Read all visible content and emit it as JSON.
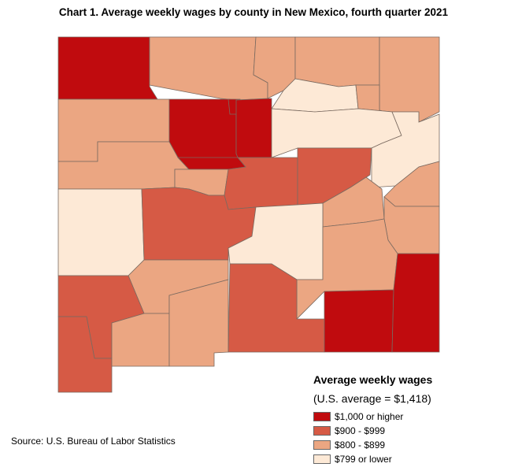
{
  "title": "Chart 1. Average weekly wages by county in New Mexico, fourth quarter 2021",
  "legend": {
    "title": "Average weekly wages",
    "subtitle": "(U.S. average = $1,418)",
    "items": [
      {
        "label": "$1,000 or higher",
        "color": "#c00b0e",
        "tier": 1
      },
      {
        "label": "$900 - $999",
        "color": "#d65a45",
        "tier": 2
      },
      {
        "label": "$800 - $899",
        "color": "#eba682",
        "tier": 3
      },
      {
        "label": "$799 or lower",
        "color": "#fde9d6",
        "tier": 4
      }
    ]
  },
  "source": "Source: U.S. Bureau of Labor Statistics"
}
